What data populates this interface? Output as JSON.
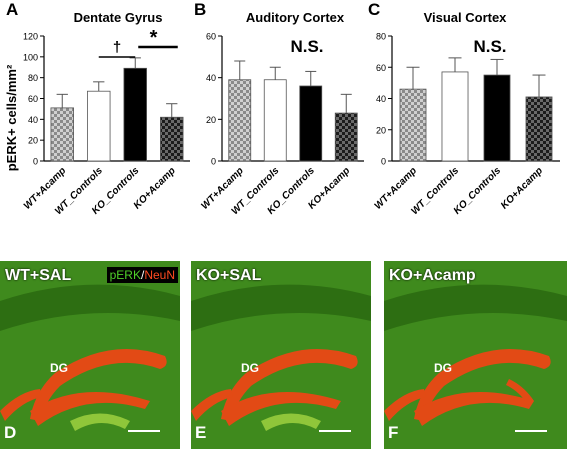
{
  "figure": {
    "panel_letters": [
      "A",
      "B",
      "C"
    ],
    "y_axis_label": "pERK+ cells/mm²"
  },
  "chart_data": [
    {
      "type": "bar",
      "title": "Dentate Gyrus",
      "categories": [
        "WT+Acamp",
        "WT_Controls",
        "KO_Controls",
        "KO+Acamp"
      ],
      "values": [
        51,
        67,
        89,
        42
      ],
      "errors": [
        13,
        9,
        10,
        13
      ],
      "ylim": [
        0,
        120
      ],
      "yticks": [
        0,
        20,
        40,
        60,
        80,
        100,
        120
      ],
      "ylabel": "pERK+ cells/mm²",
      "annotations": [
        {
          "text": "†",
          "between": [
            "WT_Controls",
            "KO_Controls"
          ]
        },
        {
          "text": "*",
          "between": [
            "KO_Controls",
            "KO+Acamp"
          ]
        }
      ]
    },
    {
      "type": "bar",
      "title": "Auditory Cortex",
      "categories": [
        "WT+Acamp",
        "WT_Controls",
        "KO_Controls",
        "KO+Acamp"
      ],
      "values": [
        39,
        39,
        36,
        23
      ],
      "errors": [
        9,
        6,
        7,
        9
      ],
      "ylim": [
        0,
        60
      ],
      "yticks": [
        0,
        20,
        40,
        60
      ],
      "annotations": [
        {
          "text": "N.S."
        }
      ]
    },
    {
      "type": "bar",
      "title": "Visual Cortex",
      "categories": [
        "WT+Acamp",
        "WT_Controls",
        "KO_Controls",
        "KO+Acamp"
      ],
      "values": [
        46,
        57,
        55,
        41
      ],
      "errors": [
        14,
        9,
        10,
        14
      ],
      "ylim": [
        0,
        80
      ],
      "yticks": [
        0,
        20,
        40,
        60,
        80
      ],
      "annotations": [
        {
          "text": "N.S."
        }
      ]
    }
  ],
  "bar_fills": [
    "checker-light",
    "white",
    "black",
    "checker-dark"
  ],
  "micrographs": [
    {
      "label": "WT+SAL",
      "letter": "D",
      "region": "DG",
      "legend_green": "pERK",
      "legend_sep": "/",
      "legend_red": "NeuN"
    },
    {
      "label": "KO+SAL",
      "letter": "E",
      "region": "DG"
    },
    {
      "label": "KO+Acamp",
      "letter": "F",
      "region": "DG"
    }
  ],
  "colors": {
    "tissue_green": "#3f8a1d",
    "cell_layer_red": "#e24a15",
    "background": "#ffffff"
  }
}
